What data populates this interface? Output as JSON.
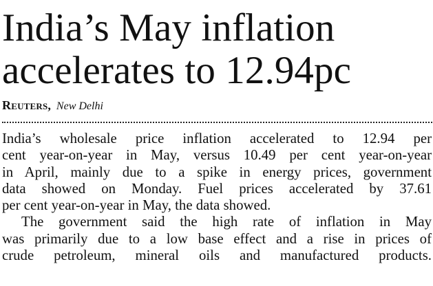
{
  "article": {
    "headline_lines": [
      "India’s May inflation",
      "accelerates to 12.94pc"
    ],
    "byline": {
      "agency": "Reuters",
      "comma": ",",
      "location": "New Delhi"
    },
    "paragraphs": [
      {
        "lines": [
          "India’s wholesale price inflation accelerated to 12.94 per",
          "cent year-on-year in May, versus 10.49 per cent year-on-year",
          "in April, mainly due to a spike in energy prices, government",
          "data showed on Monday. Fuel prices accelerated by 37.61",
          "per cent year-on-year in May, the data showed."
        ]
      },
      {
        "lines": [
          "The government said the high rate of inflation in May",
          "was primarily due to a low base effect and a rise in prices of",
          "crude petroleum, mineral oils and manufactured products."
        ]
      }
    ]
  }
}
